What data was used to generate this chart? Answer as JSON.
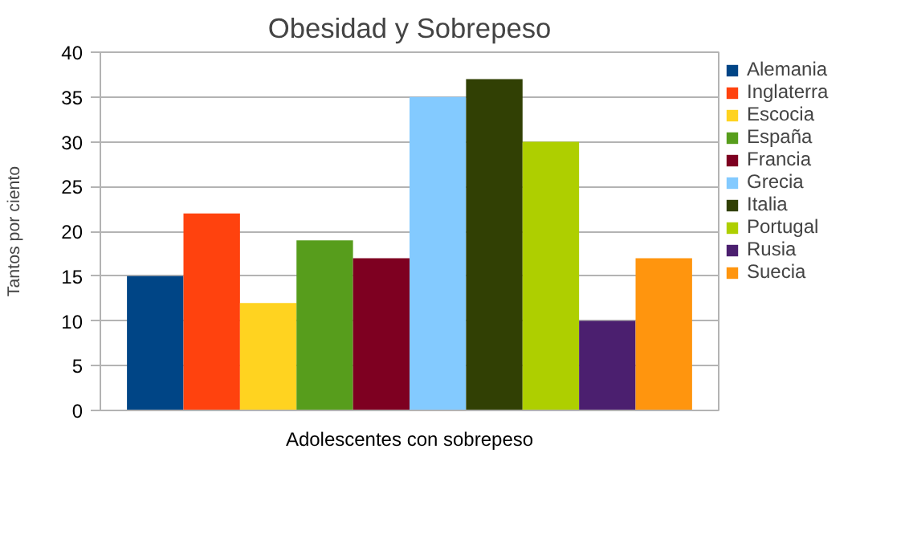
{
  "chart_data": {
    "type": "bar",
    "title": "Obesidad y Sobrepeso",
    "ylabel": "Tantos por ciento",
    "categories": [
      "Adolescentes con sobrepeso"
    ],
    "series": [
      {
        "name": "Alemania",
        "color": "#004586",
        "values": [
          15
        ]
      },
      {
        "name": "Inglaterra",
        "color": "#ff420e",
        "values": [
          22
        ]
      },
      {
        "name": "Escocia",
        "color": "#ffd320",
        "values": [
          12
        ]
      },
      {
        "name": "España",
        "color": "#579d1c",
        "values": [
          19
        ]
      },
      {
        "name": "Francia",
        "color": "#7e0021",
        "values": [
          17
        ]
      },
      {
        "name": "Grecia",
        "color": "#83caff",
        "values": [
          35
        ]
      },
      {
        "name": "Italia",
        "color": "#314004",
        "values": [
          37
        ]
      },
      {
        "name": "Portugal",
        "color": "#aecf00",
        "values": [
          30
        ]
      },
      {
        "name": "Rusia",
        "color": "#4b1f6f",
        "values": [
          10
        ]
      },
      {
        "name": "Suecia",
        "color": "#ff950e",
        "values": [
          17
        ]
      }
    ],
    "ylim": [
      0,
      40
    ],
    "yticks": [
      0,
      5,
      10,
      15,
      20,
      25,
      30,
      35,
      40
    ],
    "grid": "y",
    "legend": "right"
  }
}
